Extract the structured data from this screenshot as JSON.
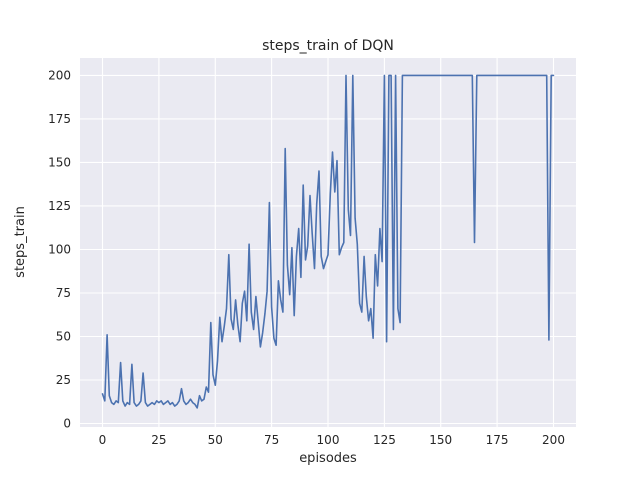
{
  "figure": {
    "title": "steps_train of DQN",
    "xlabel": "episodes",
    "ylabel": "steps_train"
  },
  "chart_data": {
    "type": "line",
    "title": "steps_train of DQN",
    "xlabel": "episodes",
    "ylabel": "steps_train",
    "series_name": "steps_train",
    "line_color": "#4c72b0",
    "axes_background": "#eaeaf2",
    "grid_color": "#ffffff",
    "text_color": "#262626",
    "grid": true,
    "legend": false,
    "xlim": [
      -10,
      210
    ],
    "ylim": [
      -2,
      210
    ],
    "xticks": [
      0,
      25,
      50,
      75,
      100,
      125,
      150,
      175,
      200
    ],
    "yticks": [
      0,
      25,
      50,
      75,
      100,
      125,
      150,
      175,
      200
    ],
    "x_start": 0,
    "x_step": 1,
    "values": [
      17,
      13,
      51,
      16,
      12,
      11,
      13,
      12,
      35,
      13,
      10,
      12,
      11,
      34,
      12,
      10,
      11,
      13,
      29,
      12,
      10,
      11,
      12,
      11,
      13,
      12,
      13,
      11,
      12,
      13,
      11,
      12,
      10,
      11,
      13,
      20,
      13,
      11,
      12,
      14,
      12,
      11,
      9,
      16,
      13,
      14,
      21,
      18,
      58,
      28,
      22,
      36,
      61,
      47,
      56,
      66,
      97,
      60,
      54,
      71,
      57,
      47,
      69,
      76,
      59,
      103,
      64,
      54,
      73,
      59,
      44,
      52,
      63,
      76,
      127,
      67,
      49,
      45,
      82,
      71,
      64,
      158,
      91,
      74,
      101,
      62,
      96,
      112,
      84,
      137,
      94,
      102,
      131,
      109,
      89,
      126,
      145,
      96,
      89,
      93,
      97,
      132,
      156,
      133,
      151,
      97,
      101,
      104,
      200,
      123,
      108,
      200,
      118,
      103,
      69,
      64,
      96,
      73,
      59,
      66,
      49,
      97,
      79,
      112,
      93,
      200,
      47,
      200,
      200,
      54,
      200,
      66,
      58,
      200,
      200,
      200,
      200,
      200,
      200,
      200,
      200,
      200,
      200,
      200,
      200,
      200,
      200,
      200,
      200,
      200,
      200,
      200,
      200,
      200,
      200,
      200,
      200,
      200,
      200,
      200,
      200,
      200,
      200,
      200,
      200,
      104,
      200,
      200,
      200,
      200,
      200,
      200,
      200,
      200,
      200,
      200,
      200,
      200,
      200,
      200,
      200,
      200,
      200,
      200,
      200,
      200,
      200,
      200,
      200,
      200,
      200,
      200,
      200,
      200,
      200,
      200,
      200,
      200,
      48,
      200,
      200
    ]
  }
}
